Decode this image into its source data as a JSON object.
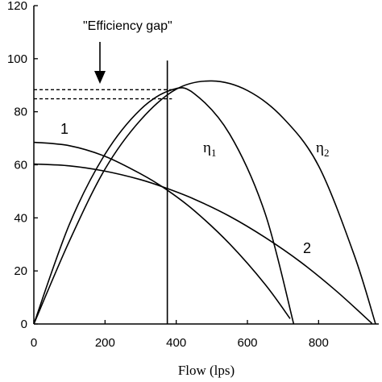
{
  "chart_data": {
    "type": "line",
    "title": "",
    "xlabel": "Flow (lps)",
    "ylabel": "",
    "xlim": [
      0,
      960
    ],
    "ylim": [
      0,
      120
    ],
    "x_ticks": [
      "0",
      "200",
      "400",
      "600",
      "800"
    ],
    "x_tick_values": [
      0,
      200,
      400,
      600,
      800
    ],
    "y_ticks": [
      "0",
      "20",
      "40",
      "60",
      "80",
      "100",
      "120"
    ],
    "y_tick_values": [
      0,
      20,
      40,
      60,
      80,
      100,
      120
    ],
    "grid": false,
    "series": [
      {
        "name": "1",
        "label": "1",
        "x": [
          0,
          100,
          200,
          300,
          370,
          450,
          550,
          650,
          720
        ],
        "y": [
          68.5,
          67.2,
          63.2,
          56.6,
          50.9,
          42.8,
          30.2,
          14.9,
          2.0
        ]
      },
      {
        "name": "2",
        "label": "2",
        "x": [
          0,
          100,
          200,
          300,
          370,
          450,
          550,
          650,
          750,
          850,
          950
        ],
        "y": [
          60.3,
          59.6,
          57.6,
          54.4,
          51.3,
          47.1,
          40.6,
          32.6,
          23.3,
          12.4,
          0.2
        ]
      },
      {
        "name": "η1",
        "label_main": "η",
        "label_sub": "1",
        "x": [
          0,
          100,
          200,
          300,
          388,
          450,
          550,
          650,
          730
        ],
        "y": [
          0,
          37.6,
          64.0,
          80.9,
          88.3,
          86.9,
          71.6,
          41.6,
          0
        ]
      },
      {
        "name": "η2",
        "label_main": "η",
        "label_sub": "2",
        "x": [
          0,
          100,
          200,
          300,
          400,
          500,
          600,
          700,
          800,
          900,
          960
        ],
        "y": [
          0,
          31.3,
          58.4,
          76.9,
          88.5,
          91.6,
          88.0,
          77.7,
          59.6,
          26.0,
          0
        ]
      }
    ],
    "reference_lines": {
      "vertical_x": 375,
      "vertical_ymax": 99.3,
      "dashed_y": [
        88.3,
        84.9
      ],
      "dashed_x_end": 388
    },
    "annotations": {
      "efficiency_gap_text": "\"Efficiency gap\""
    }
  }
}
